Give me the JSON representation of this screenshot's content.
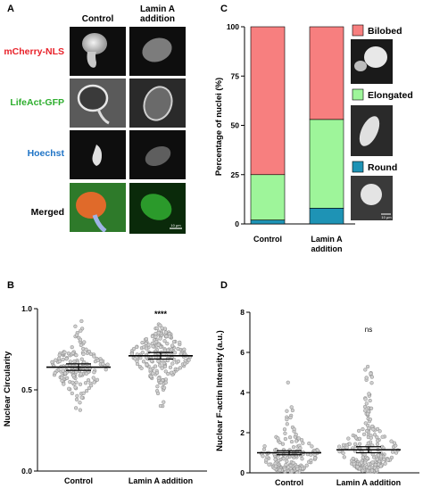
{
  "panel_labels": {
    "a": "A",
    "b": "B",
    "c": "C",
    "d": "D"
  },
  "panel_a": {
    "col_headers": [
      "Control",
      "Lamin A\naddition"
    ],
    "rows": [
      {
        "label": "mCherry-NLS",
        "color": "#e8222a"
      },
      {
        "label": "LifeAct-GFP",
        "color": "#2eae2e"
      },
      {
        "label": "Hoechst",
        "color": "#1f74c6"
      },
      {
        "label": "Merged",
        "color": "#000000"
      }
    ],
    "scalebar": "10 μm"
  },
  "chart_data": [
    {
      "type": "bar",
      "panel": "C",
      "stacked": true,
      "categories": [
        "Control",
        "Lamin A\naddition"
      ],
      "series": [
        {
          "name": "Round",
          "values": [
            2,
            8
          ],
          "color": "#1e93b5"
        },
        {
          "name": "Elongated",
          "values": [
            23,
            45
          ],
          "color": "#9ef59a"
        },
        {
          "name": "Bilobed",
          "values": [
            75,
            47
          ],
          "color": "#f77f7f"
        }
      ],
      "ylabel": "Percentage of nuclei (%)",
      "ylim": [
        0,
        100
      ],
      "yticks": [
        0,
        25,
        50,
        75,
        100
      ],
      "legend_placement": "right",
      "scalebar": "10 μm"
    },
    {
      "type": "scatter",
      "panel": "B",
      "categories": [
        "Control",
        "Lamin A addition"
      ],
      "ylabel": "Nuclear Circularity",
      "ylim": [
        0.0,
        1.0
      ],
      "yticks": [
        0.0,
        0.5,
        1.0
      ],
      "means": [
        0.64,
        0.71
      ],
      "ci": [
        [
          0.62,
          0.66
        ],
        [
          0.69,
          0.73
        ]
      ],
      "annotation": [
        "",
        "****"
      ]
    },
    {
      "type": "scatter",
      "panel": "D",
      "categories": [
        "Control",
        "Lamin A addition"
      ],
      "ylabel": "Nuclear F-actin Intensity (a.u.)",
      "ylim": [
        0,
        8
      ],
      "yticks": [
        0,
        2,
        4,
        6,
        8
      ],
      "means": [
        1.0,
        1.15
      ],
      "ci": [
        [
          0.9,
          1.1
        ],
        [
          1.0,
          1.3
        ]
      ],
      "annotation": [
        "",
        "ns"
      ]
    }
  ]
}
